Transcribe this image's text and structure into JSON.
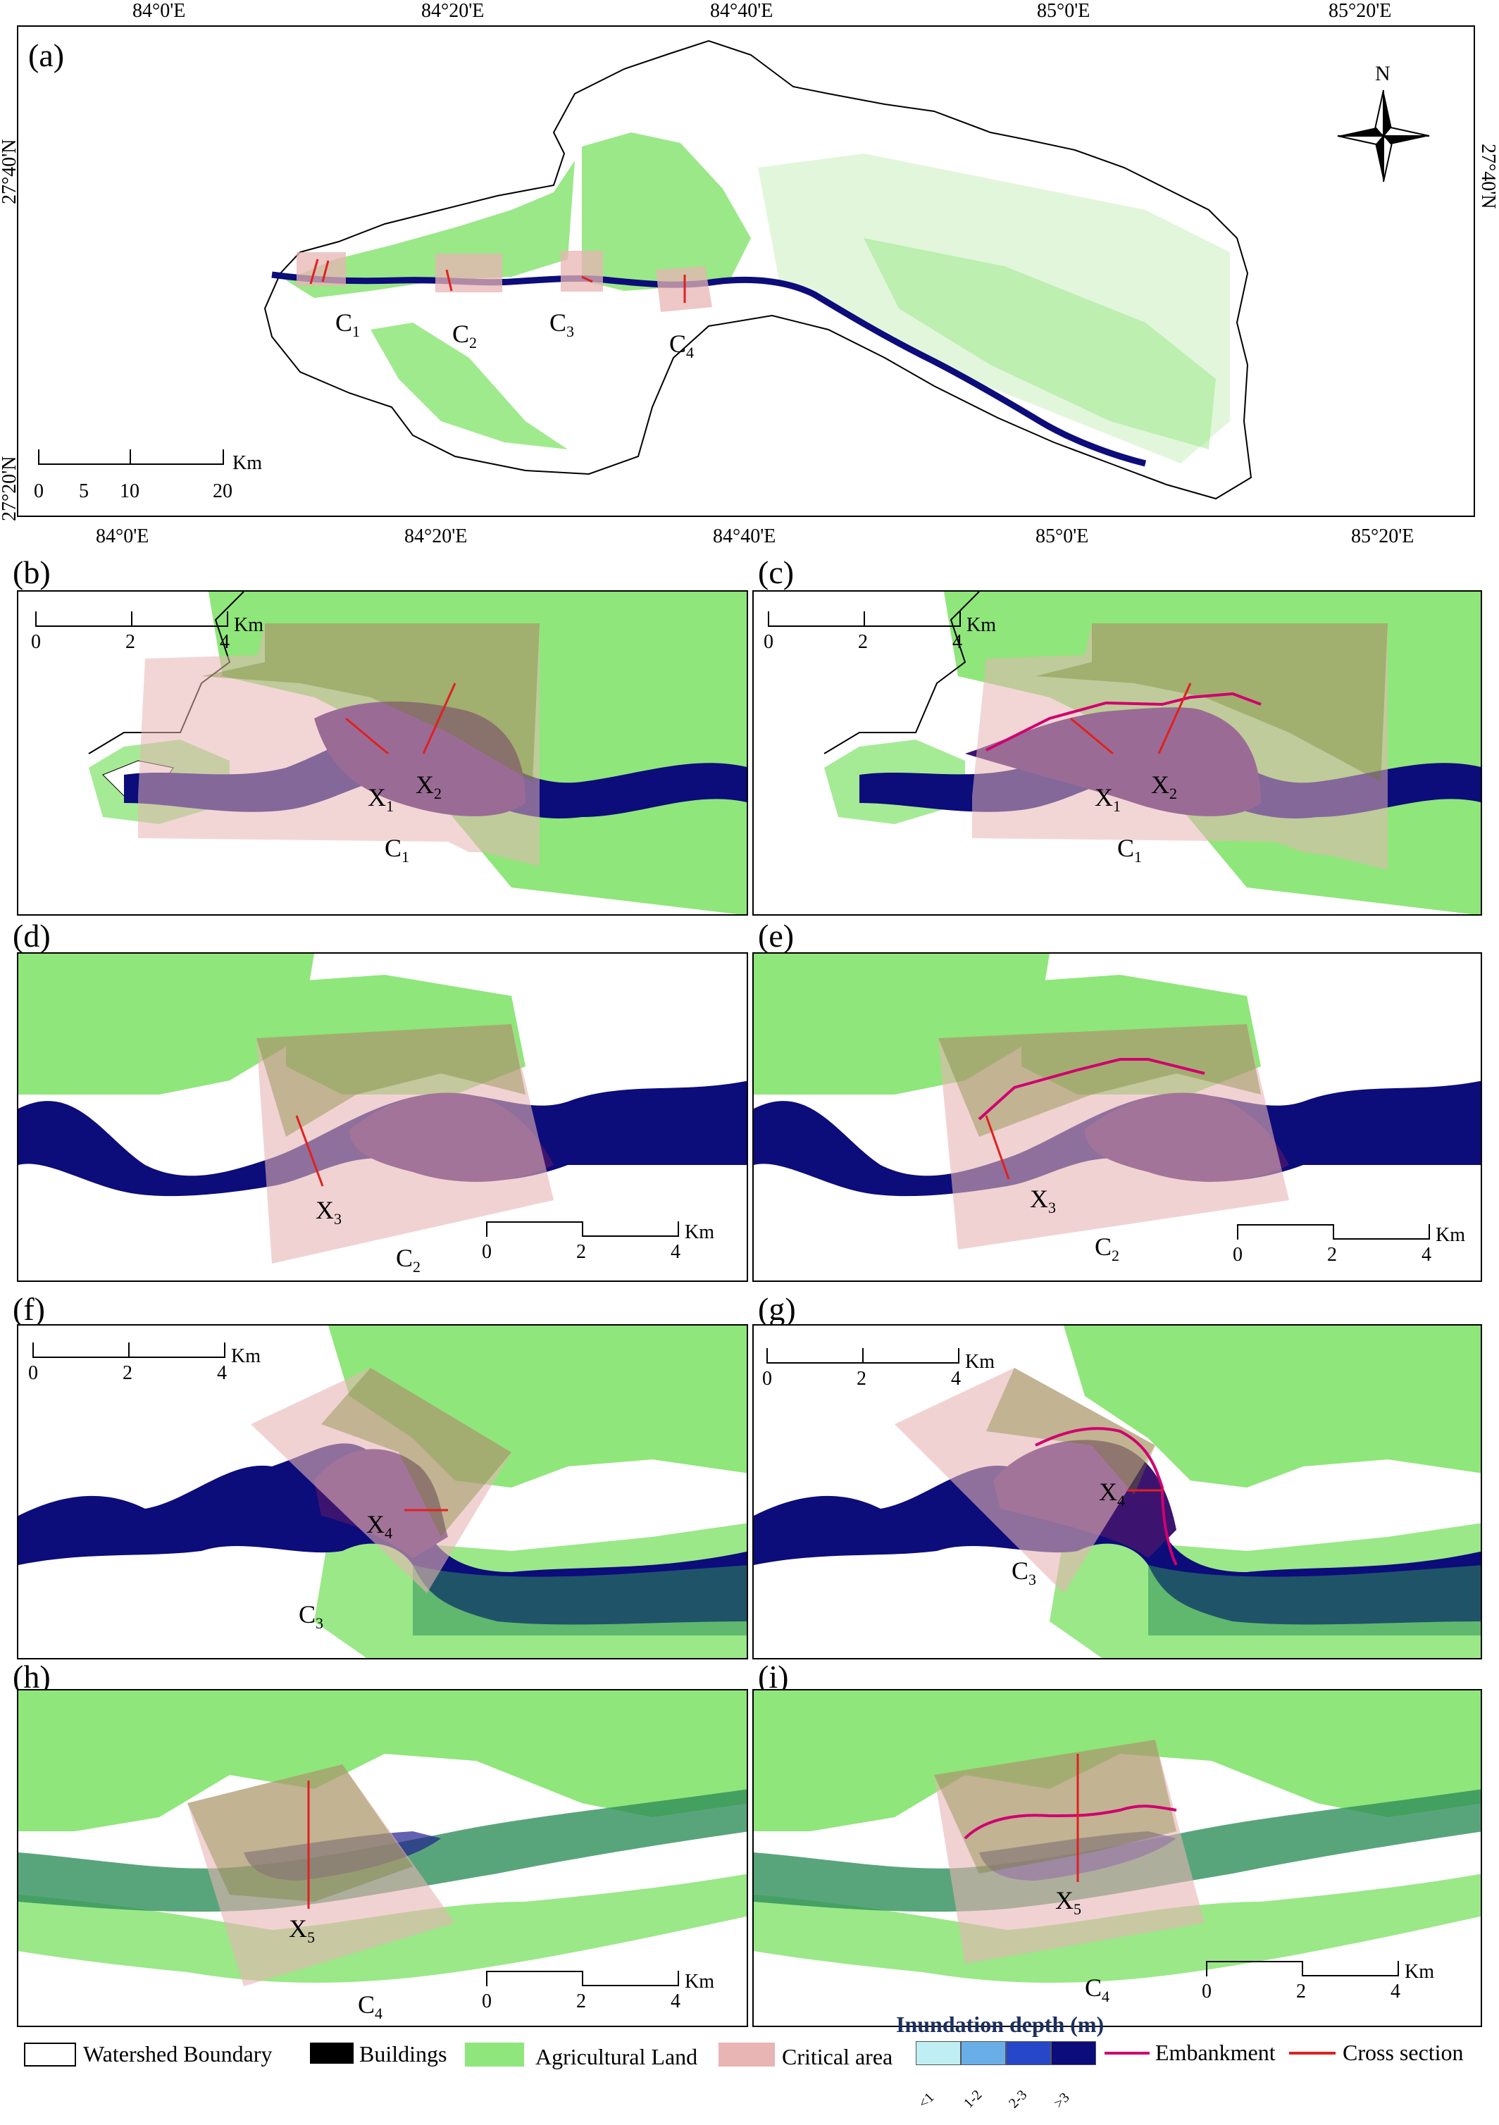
{
  "panel_a": {
    "label": "(a)",
    "top_ticks": [
      "84°0'E",
      "84°20'E",
      "84°40'E",
      "85°0'E",
      "85°20'E"
    ],
    "bottom_ticks": [
      "84°0'E",
      "84°20'E",
      "84°40'E",
      "85°0'E",
      "85°20'E"
    ],
    "left_ticks": [
      "27°40'N",
      "27°20'N"
    ],
    "right_ticks": [
      "27°40'N"
    ],
    "north_label": "N",
    "scale": {
      "ticks": [
        "0",
        "5",
        "10",
        "20"
      ],
      "unit": "Km"
    },
    "areas": [
      {
        "base": "C",
        "sub": "1"
      },
      {
        "base": "C",
        "sub": "2"
      },
      {
        "base": "C",
        "sub": "3"
      },
      {
        "base": "C",
        "sub": "4"
      }
    ]
  },
  "panels": {
    "b": {
      "label": "(b)",
      "area": {
        "base": "C",
        "sub": "1"
      },
      "xs": [
        {
          "base": "X",
          "sub": "1"
        },
        {
          "base": "X",
          "sub": "2"
        }
      ]
    },
    "c": {
      "label": "(c)",
      "area": {
        "base": "C",
        "sub": "1"
      },
      "xs": [
        {
          "base": "X",
          "sub": "1"
        },
        {
          "base": "X",
          "sub": "2"
        }
      ]
    },
    "d": {
      "label": "(d)",
      "area": {
        "base": "C",
        "sub": "2"
      },
      "xs": [
        {
          "base": "X",
          "sub": "3"
        }
      ]
    },
    "e": {
      "label": "(e)",
      "area": {
        "base": "C",
        "sub": "2"
      },
      "xs": [
        {
          "base": "X",
          "sub": "3"
        }
      ]
    },
    "f": {
      "label": "(f)",
      "area": {
        "base": "C",
        "sub": "3"
      },
      "xs": [
        {
          "base": "X",
          "sub": "4"
        }
      ]
    },
    "g": {
      "label": "(g)",
      "area": {
        "base": "C",
        "sub": "3"
      },
      "xs": [
        {
          "base": "X",
          "sub": "4"
        }
      ]
    },
    "h": {
      "label": "(h)",
      "area": {
        "base": "C",
        "sub": "4"
      },
      "xs": [
        {
          "base": "X",
          "sub": "5"
        }
      ]
    },
    "i": {
      "label": "(i)",
      "area": {
        "base": "C",
        "sub": "4"
      },
      "xs": [
        {
          "base": "X",
          "sub": "5"
        }
      ]
    }
  },
  "panel_scale": {
    "ticks": [
      "0",
      "2",
      "4"
    ],
    "unit": "Km"
  },
  "legend": {
    "watershed": "Watershed Boundary",
    "buildings": "Buildings",
    "agri": "Agricultural Land",
    "critical": "Critical area",
    "depth_title": "Inundation depth (m)",
    "depth_classes": [
      "<1",
      "1-2",
      "2-3",
      ">3"
    ],
    "embankment": "Embankment",
    "cross_section": "Cross section"
  },
  "colors": {
    "agri": "#8fe67a",
    "critical": "#e8b4b4",
    "embankment": "#d0006f",
    "cross_section": "#e02020",
    "depth": [
      "#bfeff2",
      "#6aaee8",
      "#2747c9",
      "#0c0c7a"
    ],
    "deep_overlap": "#3c1470"
  }
}
